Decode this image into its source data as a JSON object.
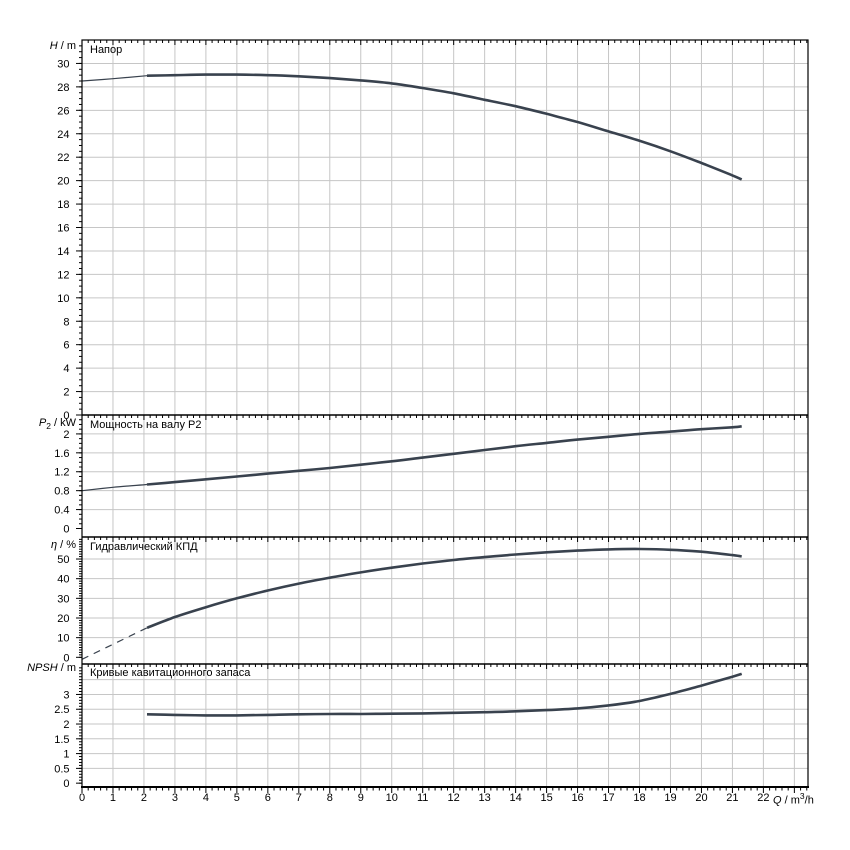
{
  "chart_data": {
    "type": "line",
    "description_texts": {
      "panel_titles": [
        "Напор",
        "Мощность на валу P2",
        "Гидравлический КПД",
        "Кривые кавитационного запаса"
      ]
    },
    "colors": {
      "curve": "#39424E",
      "grid": "#C6C6C6",
      "axis": "#000000",
      "background": "#FFFFFF"
    },
    "x_axis": {
      "label": {
        "symbol": "Q",
        "unit_pre": " / m",
        "sup": "3",
        "unit_post": "/h"
      },
      "domain": [
        0,
        23.44
      ],
      "labeled_ticks": [
        0,
        1,
        2,
        3,
        4,
        5,
        6,
        7,
        8,
        9,
        10,
        11,
        12,
        13,
        14,
        15,
        16,
        17,
        18,
        19,
        20,
        21,
        22
      ],
      "grid_ticks": [
        1,
        2,
        3,
        4,
        5,
        6,
        7,
        8,
        9,
        10,
        11,
        12,
        13,
        14,
        15,
        16,
        17,
        18,
        19,
        20,
        21,
        22,
        23
      ],
      "minor_step": 0.2
    },
    "panels": [
      {
        "id": "head",
        "title": "Напор",
        "y_label": {
          "symbol": "H",
          "unit": " / m"
        },
        "domain": [
          0,
          32
        ],
        "labeled_ticks": [
          0,
          2,
          4,
          6,
          8,
          10,
          12,
          14,
          16,
          18,
          20,
          22,
          24,
          26,
          28,
          30
        ],
        "grid_ticks": [
          2,
          4,
          6,
          8,
          10,
          12,
          14,
          16,
          18,
          20,
          22,
          24,
          26,
          28,
          30
        ],
        "minor_step": 0.5,
        "series": [
          {
            "name": "head-lead-in",
            "style": "thin",
            "points": [
              [
                0,
                28.5
              ],
              [
                1,
                28.7
              ],
              [
                2.1,
                28.95
              ]
            ]
          },
          {
            "name": "head-curve",
            "style": "main",
            "points": [
              [
                2.1,
                28.95
              ],
              [
                3,
                29.0
              ],
              [
                4,
                29.05
              ],
              [
                5,
                29.05
              ],
              [
                6,
                29.0
              ],
              [
                7,
                28.9
              ],
              [
                8,
                28.75
              ],
              [
                9,
                28.55
              ],
              [
                10,
                28.3
              ],
              [
                11,
                27.9
              ],
              [
                12,
                27.45
              ],
              [
                13,
                26.9
              ],
              [
                14,
                26.35
              ],
              [
                15,
                25.7
              ],
              [
                16,
                25.0
              ],
              [
                17,
                24.2
              ],
              [
                18,
                23.4
              ],
              [
                19,
                22.5
              ],
              [
                20,
                21.5
              ],
              [
                21,
                20.45
              ],
              [
                21.3,
                20.1
              ]
            ]
          }
        ]
      },
      {
        "id": "power",
        "title": "Мощность на валу P2",
        "y_label": {
          "symbol": "P",
          "sub": "2",
          "unit": " / kW"
        },
        "domain": [
          -0.18,
          2.4
        ],
        "labeled_ticks": [
          0,
          0.4,
          0.8,
          1.2,
          1.6,
          2
        ],
        "grid_ticks": [
          0.4,
          0.8,
          1.2,
          1.6,
          2
        ],
        "minor_step": 0.1,
        "series": [
          {
            "name": "power-lead-in",
            "style": "thin",
            "points": [
              [
                0,
                0.8
              ],
              [
                1,
                0.87
              ],
              [
                2.1,
                0.93
              ]
            ]
          },
          {
            "name": "power-curve",
            "style": "main",
            "points": [
              [
                2.1,
                0.93
              ],
              [
                3,
                0.98
              ],
              [
                4,
                1.04
              ],
              [
                5,
                1.1
              ],
              [
                6,
                1.16
              ],
              [
                7,
                1.22
              ],
              [
                8,
                1.28
              ],
              [
                9,
                1.35
              ],
              [
                10,
                1.42
              ],
              [
                11,
                1.5
              ],
              [
                12,
                1.58
              ],
              [
                13,
                1.66
              ],
              [
                14,
                1.74
              ],
              [
                15,
                1.81
              ],
              [
                16,
                1.88
              ],
              [
                17,
                1.94
              ],
              [
                18,
                2.0
              ],
              [
                19,
                2.05
              ],
              [
                20,
                2.1
              ],
              [
                21,
                2.14
              ],
              [
                21.3,
                2.16
              ]
            ]
          }
        ]
      },
      {
        "id": "efficiency",
        "title": "Гидравлический КПД",
        "y_label": {
          "symbol": "η",
          "unit": " / %"
        },
        "domain": [
          -3.4,
          61.2
        ],
        "labeled_ticks": [
          0,
          10,
          20,
          30,
          40,
          50
        ],
        "grid_ticks": [
          10,
          20,
          30,
          40,
          50
        ],
        "minor_step": 1.25,
        "series": [
          {
            "name": "efficiency-extrapolation",
            "style": "dashed",
            "points": [
              [
                0,
                -1
              ],
              [
                2.1,
                15
              ]
            ]
          },
          {
            "name": "efficiency-curve",
            "style": "main",
            "points": [
              [
                2.1,
                15
              ],
              [
                3,
                20.5
              ],
              [
                4,
                25.5
              ],
              [
                5,
                30
              ],
              [
                6,
                34
              ],
              [
                7,
                37.5
              ],
              [
                8,
                40.5
              ],
              [
                9,
                43.2
              ],
              [
                10,
                45.6
              ],
              [
                11,
                47.7
              ],
              [
                12,
                49.5
              ],
              [
                13,
                51.0
              ],
              [
                14,
                52.3
              ],
              [
                15,
                53.4
              ],
              [
                16,
                54.3
              ],
              [
                17,
                54.9
              ],
              [
                18,
                55.1
              ],
              [
                19,
                54.7
              ],
              [
                20,
                53.7
              ],
              [
                21,
                52.0
              ],
              [
                21.3,
                51.3
              ]
            ]
          }
        ]
      },
      {
        "id": "npsh",
        "title": "Кривые кавитационного запаса",
        "y_label": {
          "symbol": "NPSH",
          "unit": " / m"
        },
        "domain": [
          -0.13,
          4.03
        ],
        "labeled_ticks": [
          0,
          0.5,
          1,
          1.5,
          2,
          2.5,
          3
        ],
        "grid_ticks": [
          0.5,
          1,
          1.5,
          2,
          2.5,
          3,
          3.5
        ],
        "minor_step": 0.1,
        "series": [
          {
            "name": "npsh-curve",
            "style": "main",
            "points": [
              [
                2.1,
                2.33
              ],
              [
                3,
                2.31
              ],
              [
                4,
                2.29
              ],
              [
                5,
                2.29
              ],
              [
                6,
                2.31
              ],
              [
                7,
                2.33
              ],
              [
                8,
                2.34
              ],
              [
                9,
                2.34
              ],
              [
                10,
                2.35
              ],
              [
                11,
                2.36
              ],
              [
                12,
                2.38
              ],
              [
                13,
                2.4
              ],
              [
                14,
                2.43
              ],
              [
                15,
                2.47
              ],
              [
                16,
                2.53
              ],
              [
                17,
                2.63
              ],
              [
                18,
                2.78
              ],
              [
                19,
                3.02
              ],
              [
                20,
                3.3
              ],
              [
                21,
                3.6
              ],
              [
                21.3,
                3.7
              ]
            ]
          }
        ]
      }
    ]
  }
}
